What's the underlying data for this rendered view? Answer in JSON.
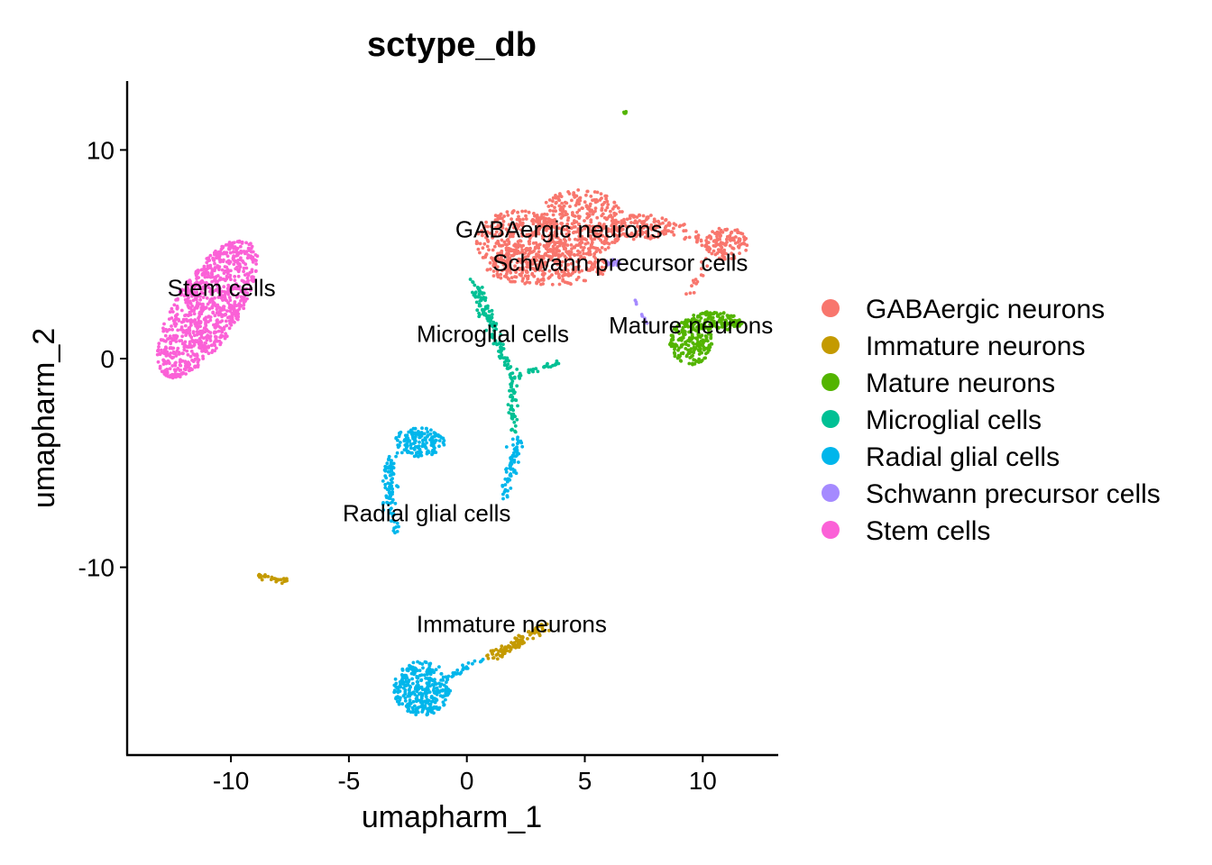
{
  "chart_data": {
    "type": "scatter",
    "title": "sctype_db",
    "xlabel": "umapharm_1",
    "ylabel": "umapharm_2",
    "xlim": [
      -14.4,
      13.2
    ],
    "ylim": [
      -19.0,
      13.3
    ],
    "xticks": [
      -10,
      -5,
      0,
      5,
      10
    ],
    "xtick_labels": [
      "-10",
      "-5",
      "0",
      "5",
      "10"
    ],
    "yticks": [
      -10,
      0,
      10
    ],
    "ytick_labels": [
      "-10",
      "0",
      "10"
    ],
    "grid": false,
    "legend_position": "right",
    "legend": [
      {
        "name": "GABAergic neurons",
        "color": "#F8766D"
      },
      {
        "name": "Immature neurons",
        "color": "#C49A00"
      },
      {
        "name": "Mature neurons",
        "color": "#53B400"
      },
      {
        "name": "Microglial cells",
        "color": "#00C094"
      },
      {
        "name": "Radial glial cells",
        "color": "#00B6EB"
      },
      {
        "name": "Schwann precursor cells",
        "color": "#A58AFF"
      },
      {
        "name": "Stem cells",
        "color": "#FB61D7"
      }
    ],
    "cluster_labels": [
      {
        "text": "GABAergic neurons",
        "x": 3.9,
        "y": 5.8
      },
      {
        "text": "Schwann precursor cells",
        "x": 6.5,
        "y": 4.2
      },
      {
        "text": "Stem cells",
        "x": -10.4,
        "y": 3.0
      },
      {
        "text": "Microglial cells",
        "x": 1.1,
        "y": 0.8
      },
      {
        "text": "Mature neurons",
        "x": 9.5,
        "y": 1.2
      },
      {
        "text": "Radial glial cells",
        "x": -1.7,
        "y": -7.8
      },
      {
        "text": "Immature neurons",
        "x": 1.9,
        "y": -13.1
      }
    ],
    "series": [
      {
        "name": "Stem cells",
        "color": "#FB61D7",
        "clusters": [
          {
            "shape": "ellipse",
            "cx": -11.0,
            "cy": 2.4,
            "rx": 1.4,
            "ry": 3.7,
            "angle": -28,
            "n": 950
          }
        ]
      },
      {
        "name": "GABAergic neurons",
        "color": "#F8766D",
        "clusters": [
          {
            "shape": "ellipse",
            "cx": 2.2,
            "cy": 5.6,
            "rx": 1.8,
            "ry": 1.5,
            "angle": 0,
            "n": 330
          },
          {
            "shape": "ellipse",
            "cx": 4.8,
            "cy": 6.5,
            "rx": 1.9,
            "ry": 1.6,
            "angle": 0,
            "n": 380
          },
          {
            "shape": "ellipse",
            "cx": 3.4,
            "cy": 4.4,
            "rx": 2.6,
            "ry": 0.9,
            "angle": 0,
            "n": 260
          },
          {
            "shape": "ellipse",
            "cx": 7.4,
            "cy": 6.3,
            "rx": 1.3,
            "ry": 0.6,
            "angle": 0,
            "n": 130
          },
          {
            "shape": "ellipse",
            "cx": 11.0,
            "cy": 5.5,
            "rx": 0.9,
            "ry": 0.8,
            "angle": 0,
            "n": 120
          },
          {
            "shape": "line",
            "x1": 8.6,
            "y1": 6.4,
            "x2": 10.1,
            "y2": 5.6,
            "n": 30,
            "spread": 0.3
          },
          {
            "shape": "line",
            "x1": 10.2,
            "y1": 4.8,
            "x2": 9.4,
            "y2": 3.0,
            "n": 15,
            "spread": 0.2
          }
        ]
      },
      {
        "name": "Schwann precursor cells",
        "color": "#A58AFF",
        "clusters": [
          {
            "shape": "ellipse",
            "cx": 6.2,
            "cy": 4.6,
            "rx": 0.3,
            "ry": 0.2,
            "angle": 0,
            "n": 14
          },
          {
            "shape": "line",
            "x1": 7.1,
            "y1": 2.9,
            "x2": 7.8,
            "y2": 1.2,
            "n": 10,
            "spread": 0.08
          }
        ]
      },
      {
        "name": "Microglial cells",
        "color": "#00C094",
        "clusters": [
          {
            "shape": "line",
            "x1": 0.3,
            "y1": 3.6,
            "x2": 1.0,
            "y2": 1.6,
            "n": 70,
            "spread": 0.25
          },
          {
            "shape": "line",
            "x1": 1.0,
            "y1": 1.6,
            "x2": 1.9,
            "y2": -0.9,
            "n": 60,
            "spread": 0.22
          },
          {
            "shape": "line",
            "x1": 1.9,
            "y1": -0.9,
            "x2": 2.0,
            "y2": -3.6,
            "n": 45,
            "spread": 0.16
          },
          {
            "shape": "line",
            "x1": 2.0,
            "y1": -0.9,
            "x2": 3.8,
            "y2": -0.2,
            "n": 30,
            "spread": 0.12
          }
        ]
      },
      {
        "name": "Mature neurons",
        "color": "#53B400",
        "clusters": [
          {
            "shape": "ellipse",
            "cx": 9.5,
            "cy": 0.8,
            "rx": 0.9,
            "ry": 1.1,
            "angle": 0,
            "n": 200
          },
          {
            "shape": "ellipse",
            "cx": 10.6,
            "cy": 1.8,
            "rx": 1.1,
            "ry": 0.45,
            "angle": -8,
            "n": 120
          },
          {
            "shape": "ellipse",
            "cx": 6.7,
            "cy": 11.8,
            "rx": 0.06,
            "ry": 0.08,
            "angle": 0,
            "n": 6
          }
        ]
      },
      {
        "name": "Radial glial cells",
        "color": "#00B6EB",
        "clusters": [
          {
            "shape": "ellipse",
            "cx": -2.0,
            "cy": -4.0,
            "rx": 1.1,
            "ry": 0.7,
            "angle": 0,
            "n": 150
          },
          {
            "shape": "line",
            "x1": -3.2,
            "y1": -4.6,
            "x2": -3.4,
            "y2": -7.2,
            "n": 70,
            "spread": 0.28
          },
          {
            "shape": "line",
            "x1": -3.2,
            "y1": -7.2,
            "x2": -2.9,
            "y2": -8.4,
            "n": 14,
            "spread": 0.12
          },
          {
            "shape": "line",
            "x1": 2.2,
            "y1": -3.8,
            "x2": 1.6,
            "y2": -6.6,
            "n": 70,
            "spread": 0.22
          },
          {
            "shape": "ellipse",
            "cx": -1.9,
            "cy": -15.8,
            "rx": 1.2,
            "ry": 1.3,
            "angle": 0,
            "n": 330
          },
          {
            "shape": "line",
            "x1": -0.8,
            "y1": -15.2,
            "x2": 0.8,
            "y2": -14.4,
            "n": 25,
            "spread": 0.2
          }
        ]
      },
      {
        "name": "Immature neurons",
        "color": "#C49A00",
        "clusters": [
          {
            "shape": "line",
            "x1": -8.8,
            "y1": -10.4,
            "x2": -7.6,
            "y2": -10.7,
            "n": 30,
            "spread": 0.12
          },
          {
            "shape": "line",
            "x1": 1.0,
            "y1": -14.4,
            "x2": 3.3,
            "y2": -12.8,
            "n": 110,
            "spread": 0.25
          }
        ]
      }
    ]
  }
}
